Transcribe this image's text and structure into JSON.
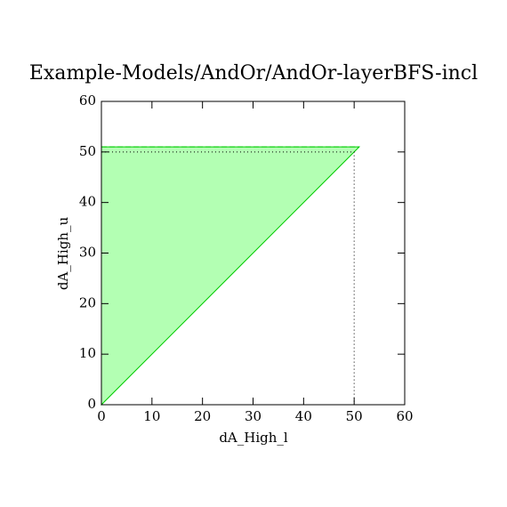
{
  "chart_data": {
    "type": "polygon",
    "title": "Example-Models/AndOr/AndOr-layerBFS-incl",
    "xlabel": "dA_High_l",
    "ylabel": "dA_High_u",
    "xlim": [
      0,
      60
    ],
    "ylim": [
      0,
      60
    ],
    "xticks": [
      0,
      10,
      20,
      30,
      40,
      50,
      60
    ],
    "yticks": [
      0,
      10,
      20,
      30,
      40,
      50,
      60
    ],
    "series": [
      {
        "x": [
          0,
          0,
          51
        ],
        "y": [
          0,
          51,
          51
        ],
        "color": "#b3ffb3",
        "edge_color": "#00cc00"
      },
      {
        "x": [
          0,
          50,
          50
        ],
        "y": [
          50,
          50,
          0
        ],
        "color": "#000000"
      }
    ]
  }
}
